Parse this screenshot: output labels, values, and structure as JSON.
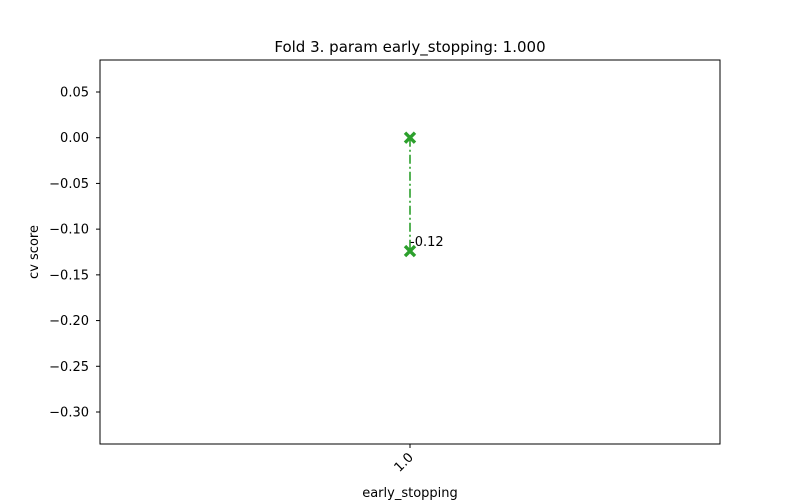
{
  "chart_data": {
    "type": "scatter",
    "title": "Fold 3. param early_stopping: 1.000",
    "xlabel": "early_stopping",
    "ylabel": "cv score",
    "x_categories": [
      "1.0"
    ],
    "ylim": [
      -0.335,
      0.085
    ],
    "yticks": [
      0.05,
      0.0,
      -0.05,
      -0.1,
      -0.15,
      -0.2,
      -0.25,
      -0.3
    ],
    "ytick_labels": [
      "0.05",
      "0.00",
      "−0.05",
      "−0.10",
      "−0.15",
      "−0.20",
      "−0.25",
      "−0.30"
    ],
    "grid": false,
    "series": [
      {
        "x": [
          "1.0",
          "1.0"
        ],
        "y": [
          0.0,
          -0.124
        ],
        "marker": "x",
        "line_style": "dashdot",
        "color": "#2ca02c"
      }
    ],
    "annotations": [
      {
        "x": "1.0",
        "y": -0.124,
        "text": "-0.12"
      }
    ]
  }
}
